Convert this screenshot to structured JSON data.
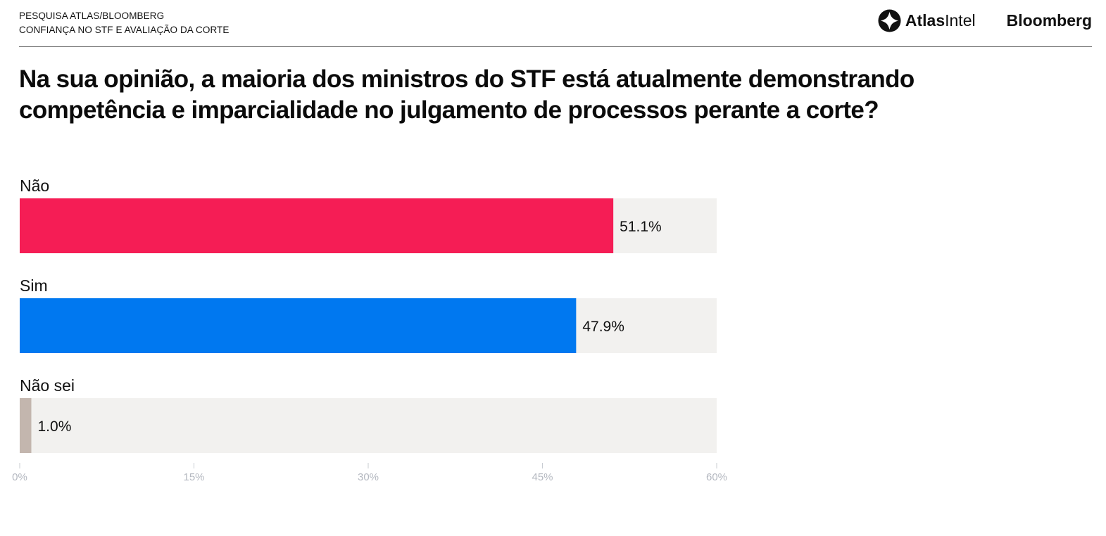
{
  "header": {
    "kicker_line1": "PESQUISA ATLAS/BLOOMBERG",
    "kicker_line2": "CONFIANÇA NO STF E AVALIAÇÃO DA CORTE",
    "logo_atlas_bold": "Atlas",
    "logo_atlas_light": "Intel",
    "logo_bloomberg": "Bloomberg"
  },
  "question": "Na sua opinião, a maioria dos ministros do STF está atualmente demonstrando competência e imparcialidade no julgamento de processos perante a corte?",
  "colors": {
    "nao": "#f51d55",
    "sim": "#0078f0",
    "nao_sei": "#c3b6ae",
    "track": "#f2f1ef",
    "axis_text": "#b4b8c0"
  },
  "chart_data": {
    "type": "bar",
    "orientation": "horizontal",
    "categories": [
      "Não",
      "Sim",
      "Não sei"
    ],
    "values": [
      51.1,
      47.9,
      1.0
    ],
    "value_labels": [
      "51.1%",
      "47.9%",
      "1.0%"
    ],
    "bar_colors": [
      "#f51d55",
      "#0078f0",
      "#c3b6ae"
    ],
    "xlim": [
      0,
      60
    ],
    "xticks": [
      0,
      15,
      30,
      45,
      60
    ],
    "xtick_labels": [
      "0%",
      "15%",
      "30%",
      "45%",
      "60%"
    ],
    "grid": false,
    "legend": "none"
  }
}
